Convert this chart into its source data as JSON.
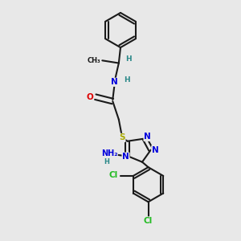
{
  "bg_color": "#e8e8e8",
  "bond_color": "#1a1a1a",
  "bond_width": 1.5,
  "atom_colors": {
    "N": "#0000dd",
    "O": "#dd0000",
    "S": "#aaaa00",
    "Cl": "#22bb22",
    "C": "#1a1a1a",
    "H": "#2a8888"
  },
  "font_size": 7.5,
  "figsize": [
    3.0,
    3.0
  ],
  "dpi": 100
}
